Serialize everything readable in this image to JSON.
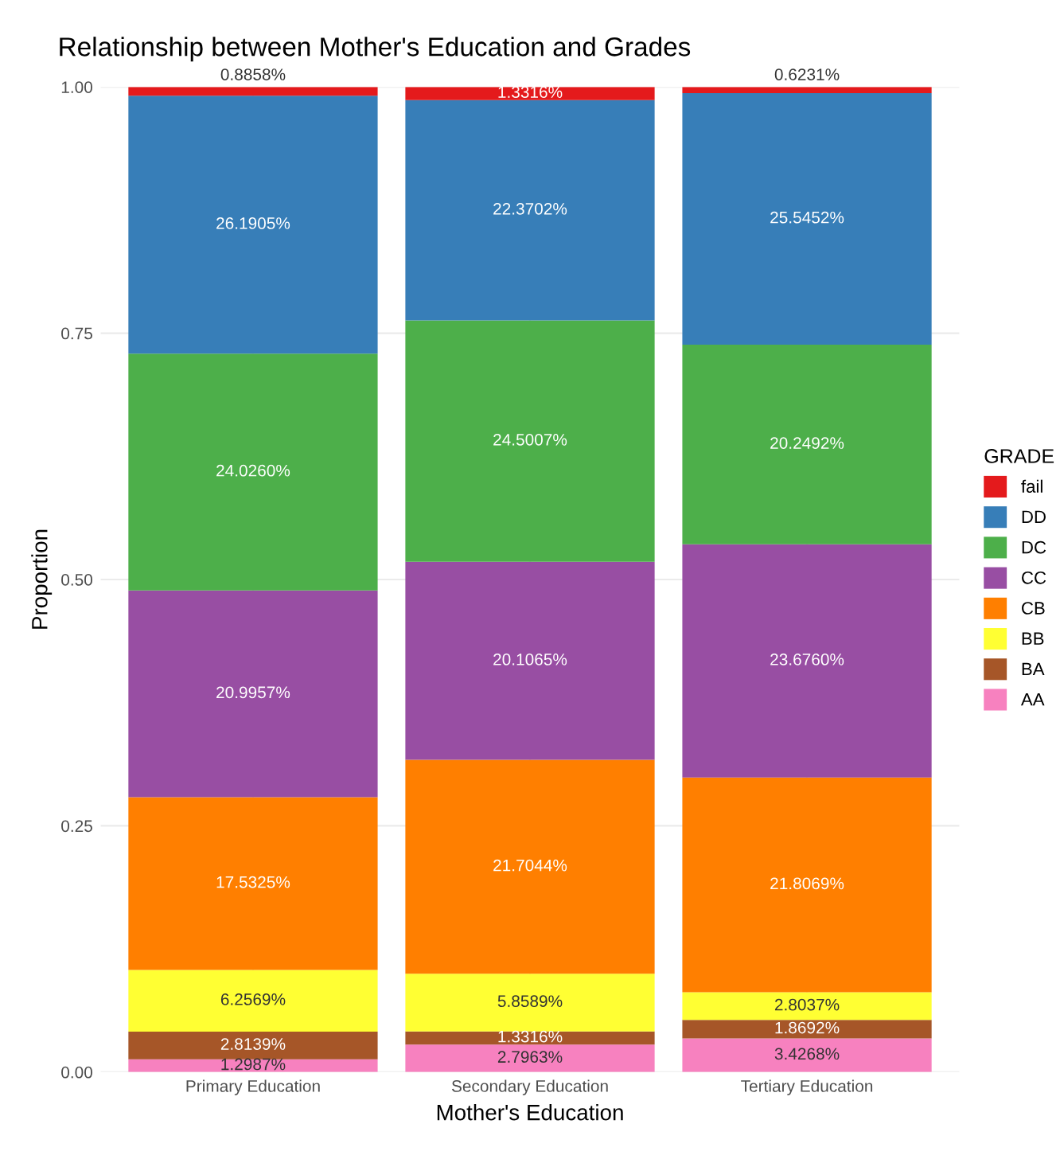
{
  "chart_data": {
    "type": "bar",
    "stacked": true,
    "title": "Relationship between Mother's Education and Grades",
    "xlabel": "Mother's Education",
    "ylabel": "Proportion",
    "legend_title": "GRADE",
    "legend": "right",
    "grid": true,
    "categories": [
      "Primary Education",
      "Secondary Education",
      "Tertiary Education"
    ],
    "ylim": [
      0,
      1.0
    ],
    "yticks": [
      {
        "value": 0,
        "label": "0.00"
      },
      {
        "value": 0.25,
        "label": "0.25"
      },
      {
        "value": 0.5,
        "label": "0.50"
      },
      {
        "value": 0.75,
        "label": "0.75"
      },
      {
        "value": 1.0,
        "label": "1.00"
      }
    ],
    "series": [
      {
        "name": "AA",
        "color": "#f781bf",
        "values": [
          0.012987,
          0.027963,
          0.034268
        ],
        "value_labels": [
          "1.2987%",
          "2.7963%",
          "3.4268%"
        ]
      },
      {
        "name": "BA",
        "color": "#a65628",
        "values": [
          0.028139,
          0.013316,
          0.018692
        ],
        "value_labels": [
          "2.8139%",
          "1.3316%",
          "1.8692%"
        ]
      },
      {
        "name": "BB",
        "color": "#ffff33",
        "values": [
          0.062569,
          0.058589,
          0.028037
        ],
        "value_labels": [
          "6.2569%",
          "5.8589%",
          "2.8037%"
        ]
      },
      {
        "name": "CB",
        "color": "#ff7f00",
        "values": [
          0.175325,
          0.217044,
          0.218069
        ],
        "value_labels": [
          "17.5325%",
          "21.7044%",
          "21.8069%"
        ]
      },
      {
        "name": "CC",
        "color": "#984ea3",
        "values": [
          0.209957,
          0.201065,
          0.23676
        ],
        "value_labels": [
          "20.9957%",
          "20.1065%",
          "23.6760%"
        ]
      },
      {
        "name": "DC",
        "color": "#4daf4a",
        "values": [
          0.24026,
          0.245007,
          0.202492
        ],
        "value_labels": [
          "24.0260%",
          "24.5007%",
          "20.2492%"
        ]
      },
      {
        "name": "DD",
        "color": "#377eb8",
        "values": [
          0.261905,
          0.223702,
          0.255452
        ],
        "value_labels": [
          "26.1905%",
          "22.3702%",
          "25.5452%"
        ]
      },
      {
        "name": "fail",
        "color": "#e41a1c",
        "values": [
          0.008858,
          0.013316,
          0.006231
        ],
        "value_labels": [
          "0.8858%",
          "1.3316%",
          "0.6231%"
        ]
      }
    ]
  }
}
